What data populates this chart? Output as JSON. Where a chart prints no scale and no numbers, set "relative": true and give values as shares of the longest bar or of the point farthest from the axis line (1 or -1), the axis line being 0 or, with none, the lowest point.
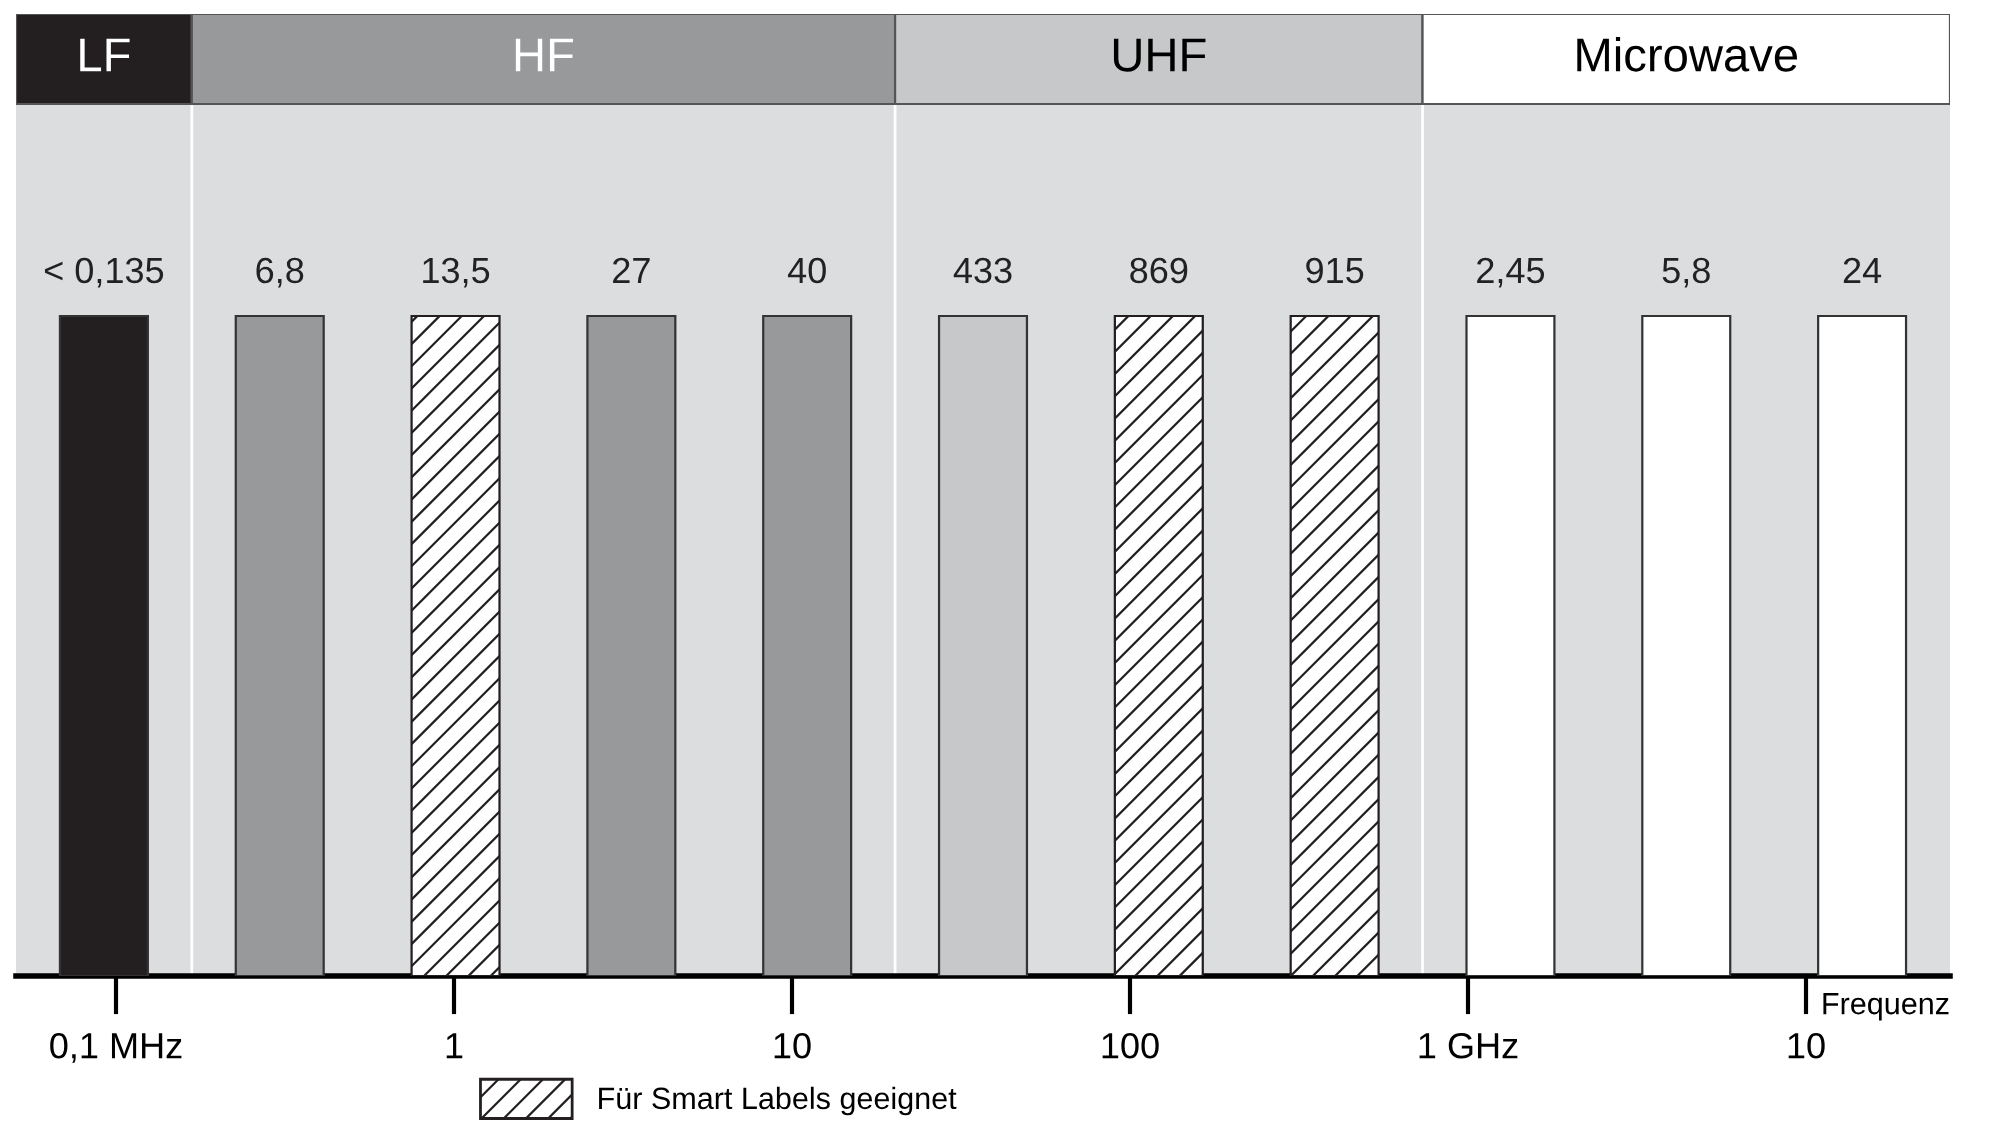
{
  "chart_data": {
    "type": "bar",
    "relative": true,
    "xlabel": "Frequenz",
    "categories": [
      "< 0,135",
      "6,8",
      "13,5",
      "27",
      "40",
      "433",
      "869",
      "915",
      "2,45",
      "5,8",
      "24"
    ],
    "series": [
      {
        "name": "LF",
        "color": "#231f20",
        "values": [
          1,
          null,
          null,
          null,
          null,
          null,
          null,
          null,
          null,
          null,
          null
        ]
      },
      {
        "name": "HF",
        "color": "#98999b",
        "values": [
          null,
          1,
          null,
          1,
          1,
          null,
          null,
          null,
          null,
          null,
          null
        ]
      },
      {
        "name": "UHF",
        "color": "#c7c8ca",
        "values": [
          null,
          null,
          null,
          null,
          null,
          1,
          null,
          null,
          null,
          null,
          null
        ]
      },
      {
        "name": "Microwave",
        "color": "#ffffff",
        "values": [
          null,
          null,
          null,
          null,
          null,
          null,
          null,
          null,
          1,
          1,
          1
        ]
      },
      {
        "name": "Für Smart Labels geeignet",
        "color": "#231f20",
        "values": [
          null,
          null,
          1,
          null,
          null,
          null,
          1,
          1,
          null,
          null,
          null
        ]
      }
    ],
    "annotations": [
      "0,1 MHz",
      "1",
      "10",
      "100",
      "1 GHz",
      "10"
    ],
    "legend": "bottom"
  }
}
